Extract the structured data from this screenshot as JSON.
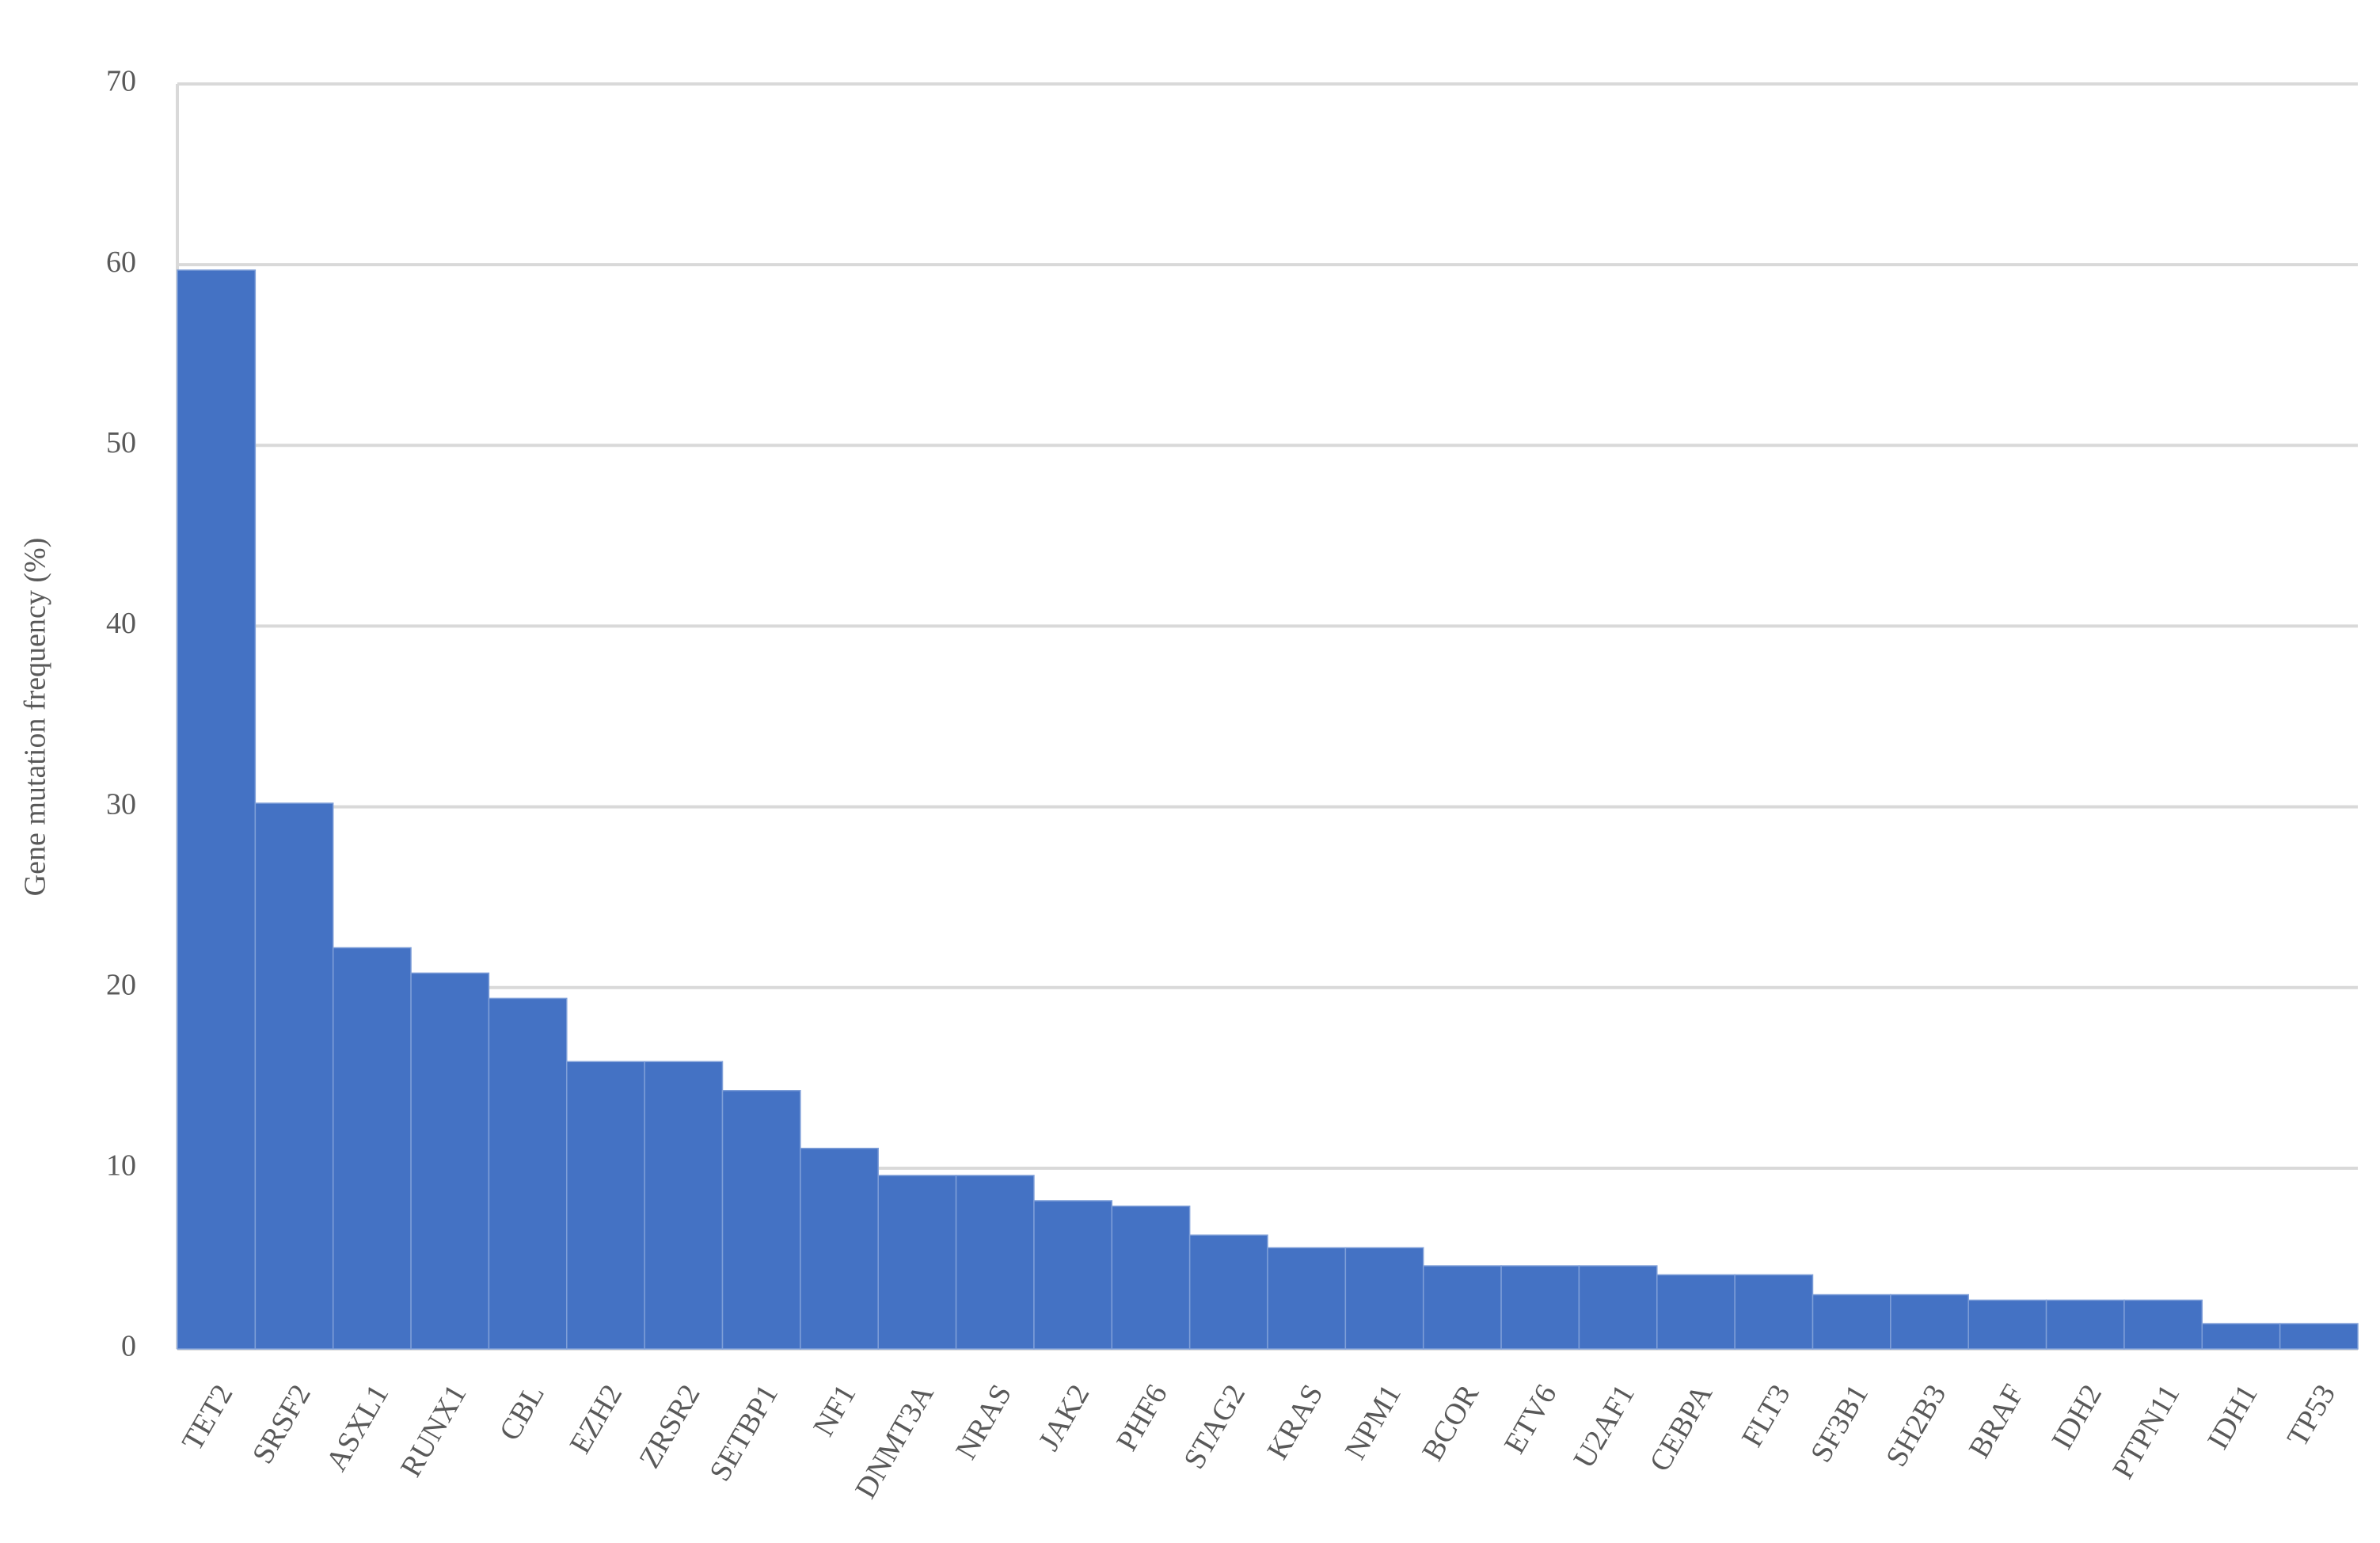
{
  "chart_data": {
    "type": "bar",
    "y_label": "Gene mutation frequency (%)",
    "categories": [
      "TET2",
      "SRSF2",
      "ASXL1",
      "RUNX1",
      "CBL",
      "EZH2",
      "ZRSR2",
      "SETBP1",
      "NF1",
      "DNMT3A",
      "NRAS",
      "JAK2",
      "PHF6",
      "STAG2",
      "KRAS",
      "NPM1",
      "BCOR",
      "ETV6",
      "U2AF1",
      "CEBPA",
      "FLT3",
      "SF3B1",
      "SH2B3",
      "BRAF",
      "IDH2",
      "PTPN11",
      "IDH1",
      "TP53"
    ],
    "values": [
      59.7,
      30.2,
      22.2,
      20.8,
      19.4,
      15.9,
      15.9,
      14.3,
      11.1,
      9.6,
      9.6,
      8.2,
      7.9,
      6.3,
      5.6,
      5.6,
      4.6,
      4.6,
      4.6,
      4.1,
      4.1,
      3.0,
      3.0,
      2.7,
      2.7,
      2.7,
      1.4,
      1.4
    ],
    "color": "#4472c4",
    "ylim": [
      0,
      70
    ],
    "yticks": [
      0,
      10,
      20,
      30,
      40,
      50,
      60,
      70
    ],
    "grid": true
  }
}
